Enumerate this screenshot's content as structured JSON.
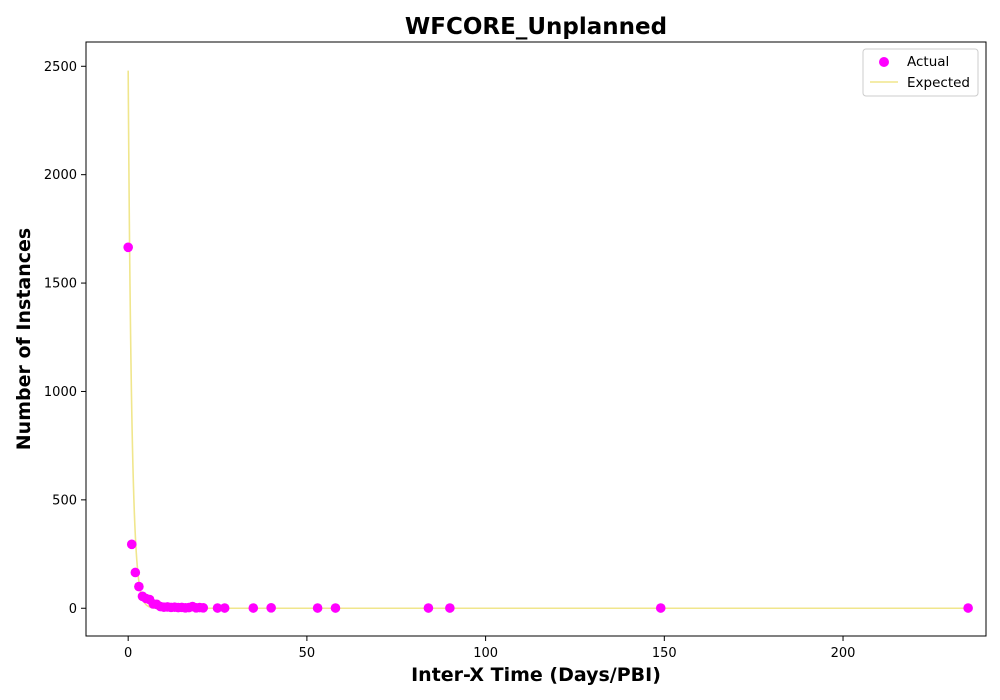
{
  "chart_data": {
    "type": "scatter",
    "title": "WFCORE_Unplanned",
    "xlabel": "Inter-X Time (Days/PBI)",
    "ylabel": "Number of Instances",
    "xlim": [
      -11.8,
      240.0
    ],
    "ylim": [
      -128,
      2612
    ],
    "xticks": [
      0,
      50,
      100,
      150,
      200
    ],
    "yticks": [
      0,
      500,
      1000,
      1500,
      2000,
      2500
    ],
    "grid": false,
    "legend_position": "top-right",
    "series": [
      {
        "name": "Actual",
        "kind": "scatter",
        "color": "#ff00ff",
        "points": [
          [
            0,
            1665
          ],
          [
            1,
            295
          ],
          [
            2,
            165
          ],
          [
            3,
            100
          ],
          [
            4,
            55
          ],
          [
            5,
            45
          ],
          [
            6,
            40
          ],
          [
            7,
            20
          ],
          [
            8,
            18
          ],
          [
            9,
            8
          ],
          [
            10,
            5
          ],
          [
            11,
            6
          ],
          [
            12,
            4
          ],
          [
            13,
            5
          ],
          [
            14,
            3
          ],
          [
            15,
            4
          ],
          [
            16,
            2
          ],
          [
            17,
            3
          ],
          [
            18,
            8
          ],
          [
            19,
            2
          ],
          [
            20,
            3
          ],
          [
            21,
            2
          ],
          [
            25,
            1
          ],
          [
            27,
            1
          ],
          [
            35,
            1
          ],
          [
            40,
            2
          ],
          [
            53,
            1
          ],
          [
            58,
            1
          ],
          [
            84,
            1
          ],
          [
            90,
            1
          ],
          [
            149,
            1
          ],
          [
            235,
            1
          ]
        ]
      },
      {
        "name": "Expected",
        "kind": "line",
        "color": "#f0e68c",
        "model": "exponential",
        "amplitude": 2480,
        "rate": 1.0,
        "x_range": [
          0,
          235
        ]
      }
    ]
  }
}
